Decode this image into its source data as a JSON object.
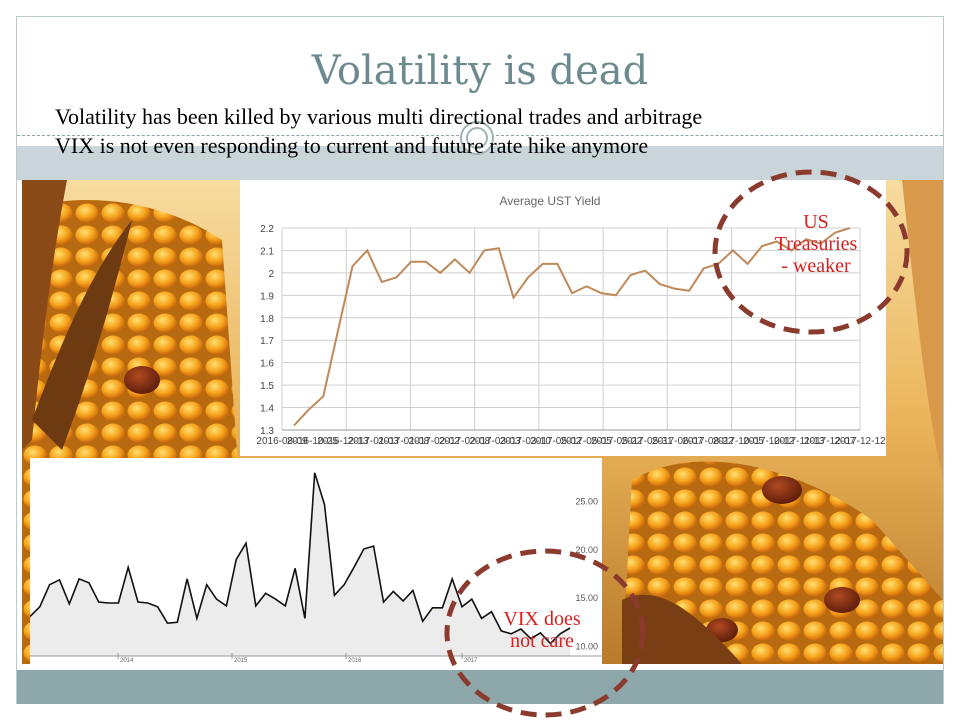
{
  "slide": {
    "title": "Volatility is dead",
    "lines": [
      "Volatility has been killed by  various multi directional trades and arbitrage",
      "VIX is not even responding to current and future rate hike anymore"
    ]
  },
  "annotations": {
    "treasuries": [
      "US",
      "Treasuries",
      "- weaker"
    ],
    "vix": [
      "VIX does",
      "not care"
    ]
  },
  "colors": {
    "title": "#6d8b8e",
    "annotation": "#d91f1f",
    "circle": "#8b3a2e",
    "ust_line": "#c0895a",
    "vix_line": "#111111",
    "band_light": "#c9d5d8",
    "band_dark": "#8ea7ab"
  },
  "chart_data": [
    {
      "type": "line",
      "title": "Average UST Yield",
      "xlabel": "",
      "ylabel": "",
      "ylim": [
        1.3,
        2.2
      ],
      "yticks": [
        "1.3",
        "1.4",
        "1.5",
        "1.6",
        "1.7",
        "1.8",
        "1.9",
        "2",
        "2.1",
        "2.2"
      ],
      "x_tick_labels": [
        "2016-08-09",
        "2016-10-25",
        "2016-12-13",
        "2017-01-03",
        "2017-01-08",
        "2017-02-02",
        "2017-02-08",
        "2017-03-03",
        "2017-03-10",
        "2017-05-02",
        "2017-05-05",
        "2017-05-22",
        "2017-05-31",
        "2017-06-07",
        "2017-08-22",
        "2017-10-05",
        "2017-10-12",
        "2017-11-13",
        "2017-12-07",
        "2017-12-12"
      ],
      "grid": true,
      "series": [
        {
          "values": [
            1.32,
            1.39,
            1.45,
            1.74,
            2.03,
            2.1,
            1.96,
            1.98,
            2.05,
            2.05,
            2.0,
            2.06,
            2.0,
            2.1,
            2.11,
            1.89,
            1.98,
            2.04,
            2.04,
            1.91,
            1.94,
            1.91,
            1.9,
            1.99,
            2.01,
            1.95,
            1.93,
            1.92,
            2.02,
            2.04,
            2.1,
            2.04,
            2.12,
            2.14,
            2.1,
            2.15,
            2.13,
            2.18,
            2.2
          ]
        }
      ]
    },
    {
      "type": "line",
      "title": "",
      "xlabel": "",
      "ylabel": "",
      "ylim": [
        9,
        28.5
      ],
      "yticks": [
        "10.00",
        "15.00",
        "20.00",
        "25.00"
      ],
      "x_tick_labels": [
        "2014",
        "2015",
        "2016",
        "2017"
      ],
      "grid": false,
      "series": [
        {
          "values": [
            13.1,
            14.1,
            16.4,
            16.9,
            14.4,
            17.0,
            16.6,
            14.6,
            14.5,
            14.5,
            18.2,
            14.6,
            14.5,
            14.1,
            12.4,
            12.5,
            17.0,
            12.9,
            16.4,
            14.9,
            14.2,
            19.0,
            20.7,
            14.2,
            15.5,
            14.9,
            14.2,
            18.1,
            12.9,
            28.0,
            24.7,
            15.3,
            16.4,
            18.2,
            20.1,
            20.4,
            14.6,
            15.7,
            14.7,
            15.8,
            12.6,
            14.0,
            14.0,
            17.0,
            14.1,
            14.9,
            12.9,
            13.6,
            11.6,
            11.3,
            11.8,
            10.8,
            11.4,
            10.3,
            11.3,
            11.9
          ]
        }
      ]
    }
  ]
}
